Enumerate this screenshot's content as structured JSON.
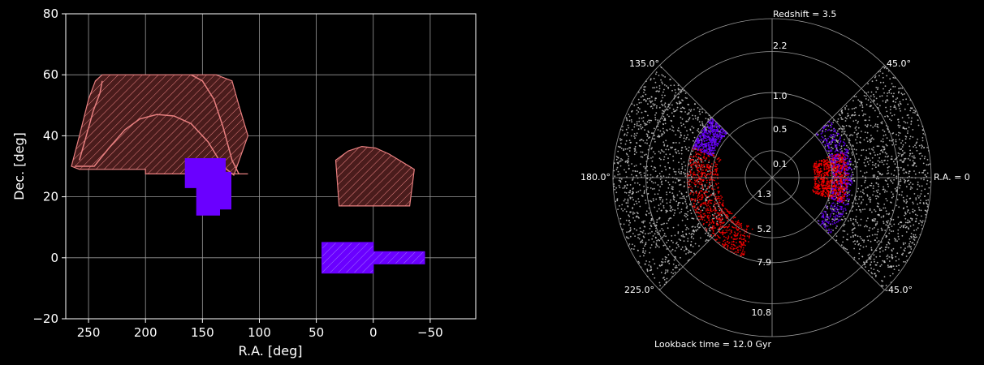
{
  "colors": {
    "background": "#000000",
    "axis": "#ffffff",
    "grid": "#9a9a9a",
    "footprint_a": "#e88080",
    "footprint_a_fill": "#4a1c1c",
    "footprint_b": "#6a00ff",
    "points_grey": "#c8c8c8",
    "points_red": "#ff0000",
    "points_blue": "#6a00ff"
  },
  "chart_data": [
    {
      "type": "area",
      "panel": "sky-footprint",
      "xlabel": "R.A. [deg]",
      "ylabel": "Dec. [deg]",
      "xlim": [
        270,
        -90
      ],
      "ylim": [
        -20,
        80
      ],
      "xticks": [
        250,
        200,
        150,
        100,
        50,
        0,
        -50
      ],
      "xtick_labels": [
        "250",
        "200",
        "150",
        "100",
        "50",
        "0",
        "−50"
      ],
      "yticks": [
        -20,
        0,
        20,
        40,
        60,
        80
      ],
      "ytick_labels": [
        "−20",
        "0",
        "20",
        "40",
        "60",
        "80"
      ],
      "grid": true,
      "series": [
        {
          "style": "hatched-red",
          "polygons": [
            [
              [
                265,
                30
              ],
              [
                258,
                40
              ],
              [
                250,
                52
              ],
              [
                244,
                58
              ],
              [
                238,
                60
              ],
              [
                138,
                60
              ],
              [
                124,
                58
              ],
              [
                118,
                50
              ],
              [
                110,
                40
              ],
              [
                122,
                27.5
              ],
              [
                110,
                27.5
              ],
              [
                200,
                27.5
              ],
              [
                200,
                29
              ],
              [
                232,
                29
              ],
              [
                258,
                29
              ],
              [
                265,
                30
              ]
            ],
            [
              [
                33,
                32
              ],
              [
                22,
                35
              ],
              [
                10,
                36.5
              ],
              [
                -2,
                36
              ],
              [
                -14,
                34
              ],
              [
                -36,
                29
              ],
              [
                -32,
                17
              ],
              [
                30,
                17
              ],
              [
                33,
                32
              ]
            ]
          ],
          "curves": [
            [
              [
                262,
                30
              ],
              [
                245,
                30
              ],
              [
                232,
                36
              ],
              [
                218,
                42
              ],
              [
                205,
                45.5
              ],
              [
                190,
                47
              ],
              [
                175,
                46.5
              ],
              [
                160,
                44
              ],
              [
                145,
                38
              ],
              [
                132,
                30
              ],
              [
                122,
                27
              ]
            ],
            [
              [
                258,
                32
              ],
              [
                252,
                40
              ],
              [
                246,
                48
              ],
              [
                240,
                54
              ],
              [
                238,
                58
              ]
            ],
            [
              [
                160,
                60
              ],
              [
                150,
                58
              ],
              [
                140,
                52
              ],
              [
                132,
                43
              ],
              [
                124,
                32
              ],
              [
                118,
                27.5
              ]
            ]
          ]
        },
        {
          "style": "solid-blue",
          "polygons": [
            [
              [
                165,
                32.5
              ],
              [
                130,
                32.5
              ],
              [
                130,
                28
              ],
              [
                125,
                28
              ],
              [
                125,
                16
              ],
              [
                135,
                16
              ],
              [
                135,
                14
              ],
              [
                155,
                14
              ],
              [
                155,
                23
              ],
              [
                165,
                23
              ],
              [
                165,
                32.5
              ]
            ]
          ]
        },
        {
          "style": "hatched-blue",
          "polygons": [
            [
              [
                45,
                5
              ],
              [
                0,
                5
              ],
              [
                0,
                2
              ],
              [
                -45,
                2
              ],
              [
                -45,
                -2
              ],
              [
                0,
                -2
              ],
              [
                0,
                -5
              ],
              [
                45,
                -5
              ],
              [
                45,
                5
              ]
            ]
          ]
        }
      ]
    },
    {
      "type": "scatter",
      "panel": "polar-wedge",
      "angle_labels": [
        "45.0°",
        "135.0°",
        "180.0°",
        "225.0°",
        "-45.0°",
        "R.A. = 0"
      ],
      "radial_labels_top": [
        "Redshift = 3.5",
        "2.2",
        "1.0",
        "0.5",
        "0.1"
      ],
      "radial_labels_bottom": [
        "1.3",
        "5.2",
        "7.9",
        "10.8",
        "Lookback time = 12.0 Gyr"
      ],
      "redshift_rings": [
        0.1,
        0.5,
        1.0,
        2.2,
        3.5
      ],
      "series": [
        {
          "color": "grey",
          "wedges": [
            [
              -45,
              45,
              0.5,
              3.5
            ],
            [
              135,
              225,
              0.5,
              3.5
            ]
          ]
        },
        {
          "color": "red",
          "wedges": [
            [
              -20,
              20,
              0.25,
              0.8
            ],
            [
              158,
              250,
              0.4,
              1.0
            ]
          ]
        },
        {
          "color": "blue",
          "wedges": [
            [
              -45,
              45,
              0.5,
              0.9
            ],
            [
              135,
              160,
              0.55,
              1.0
            ]
          ]
        }
      ]
    }
  ]
}
